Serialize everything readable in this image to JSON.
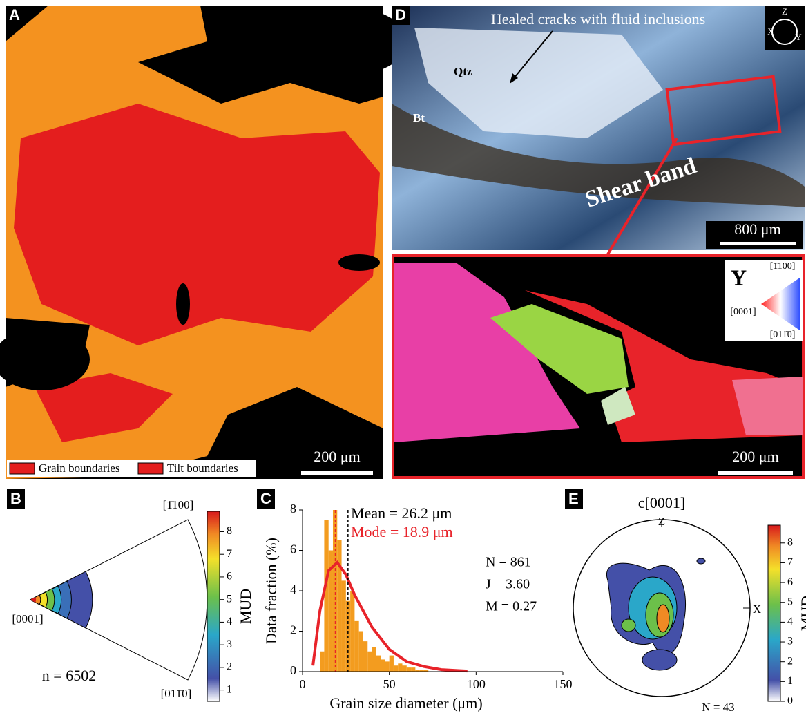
{
  "panel_a": {
    "letter": "A",
    "legend": [
      "Grain boundaries",
      "Tilt boundaries"
    ],
    "scale_bar": "200 μm"
  },
  "panel_d": {
    "letter": "D",
    "annotation": "Healed cracks with fluid inclusions",
    "labels": [
      "Qtz",
      "Bt",
      "Shear band"
    ],
    "scale_bar": "800 μm",
    "axes": [
      "Z",
      "X",
      "Y"
    ]
  },
  "panel_d_inset": {
    "key_title": "Y",
    "key_labels": [
      "[1̄100]",
      "[0001]",
      "[011̄0]"
    ],
    "scale_bar": "200 μm"
  },
  "panel_b": {
    "letter": "B",
    "labels": [
      "[1̄100]",
      "[0001]",
      "[011̄0]"
    ],
    "count": "n = 6502",
    "colorbar": {
      "label": "MUD",
      "lim": [
        0.5,
        8.9
      ],
      "ticks": [
        1,
        2,
        3,
        4,
        5,
        6,
        7,
        8
      ]
    }
  },
  "chart_data": {
    "type": "histogram",
    "letter": "C",
    "x_label": "Grain size diameter (μm)",
    "y_label": "Data fraction (%)",
    "bins": [
      10,
      12.5,
      15,
      17.5,
      20,
      22.5,
      25,
      27.5,
      30,
      32.5,
      35,
      37.5,
      40,
      42.5,
      45,
      47.5,
      50,
      52.5,
      55,
      57.5,
      60,
      62.5,
      65,
      67.5,
      70,
      72.5
    ],
    "values": [
      1.0,
      7.5,
      6.0,
      8.0,
      6.5,
      4.5,
      3.5,
      4.0,
      2.5,
      2.0,
      1.5,
      1.0,
      1.2,
      0.8,
      0.6,
      0.5,
      0.8,
      0.3,
      0.4,
      0.3,
      0.2,
      0.2,
      0.1,
      0.1,
      0.1
    ],
    "color": "#f39c1f",
    "xlim": [
      0,
      150
    ],
    "ylim": [
      0,
      8
    ],
    "xticks": [
      0,
      50,
      100,
      150
    ],
    "yticks": [
      0,
      2,
      4,
      6,
      8
    ],
    "fit": {
      "x": [
        6,
        10,
        15,
        20,
        25,
        30,
        40,
        50,
        60,
        70,
        80,
        90,
        95
      ],
      "values": [
        0.3,
        3.0,
        5.0,
        5.4,
        4.8,
        3.8,
        2.2,
        1.1,
        0.5,
        0.25,
        0.1,
        0.05,
        0.03
      ],
      "color": "#e8232a"
    },
    "mean": {
      "value": 26.2,
      "label": "Mean = 26.2 μm"
    },
    "mode": {
      "value": 18.9,
      "label": "Mode = 18.9 μm",
      "color": "#e8232a"
    },
    "stats": [
      "N = 861",
      "J = 3.60",
      "M = 0.27"
    ]
  },
  "panel_e": {
    "letter": "E",
    "title": "c[0001]",
    "labels": [
      "Z",
      "X"
    ],
    "count": "N = 43",
    "colorbar": {
      "label": "MUD",
      "lim": [
        0,
        8.9
      ],
      "ticks": [
        0,
        1,
        2,
        3,
        4,
        5,
        6,
        7,
        8
      ]
    }
  }
}
